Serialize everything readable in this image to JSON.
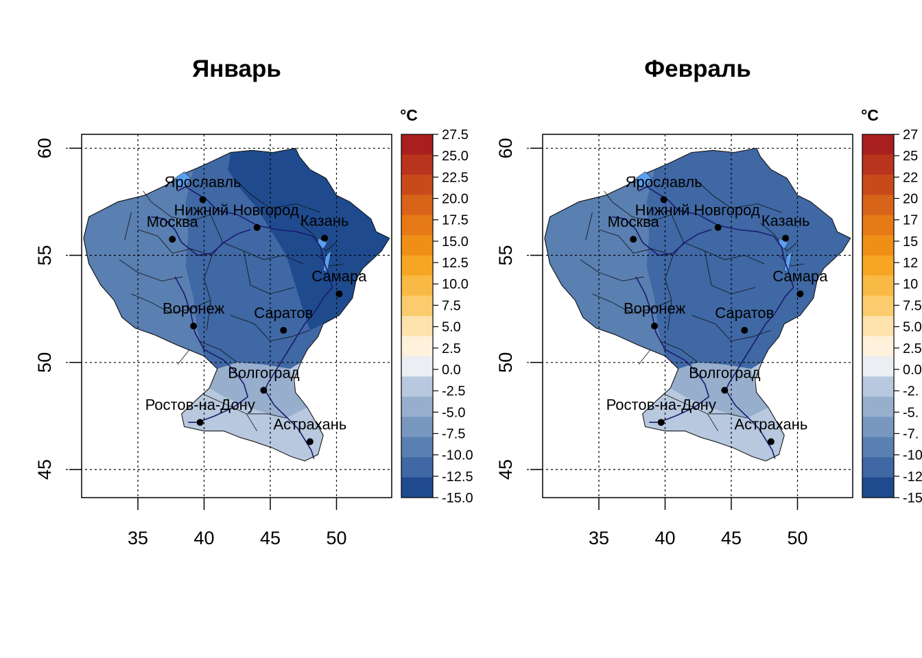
{
  "maps": [
    {
      "title": "Январь",
      "unit": "°C",
      "x_ticks": [
        "35",
        "40",
        "45",
        "50"
      ],
      "y_ticks": [
        "45",
        "50",
        "55",
        "60"
      ],
      "legend_ticks": [
        "27.5",
        "25.0",
        "22.5",
        "20.0",
        "17.5",
        "15.0",
        "12.5",
        "10.0",
        "7.5",
        "5.0",
        "2.5",
        "0.0",
        "-2.5",
        "-5.0",
        "-7.5",
        "-10.0",
        "-12.5",
        "-15.0"
      ],
      "cities": [
        {
          "name": "Ярославль",
          "lon": 39.9,
          "lat": 57.6
        },
        {
          "name": "Нижний Новгород",
          "lon": 44.0,
          "lat": 56.3
        },
        {
          "name": "Москва",
          "lon": 37.6,
          "lat": 55.75
        },
        {
          "name": "Казань",
          "lon": 49.1,
          "lat": 55.8
        },
        {
          "name": "Самара",
          "lon": 50.2,
          "lat": 53.2
        },
        {
          "name": "Воронеж",
          "lon": 39.2,
          "lat": 51.7
        },
        {
          "name": "Саратов",
          "lon": 46.0,
          "lat": 51.5
        },
        {
          "name": "Волгоград",
          "lon": 44.5,
          "lat": 48.7
        },
        {
          "name": "Ростов-на-Дону",
          "lon": 39.7,
          "lat": 47.2
        },
        {
          "name": "Астрахань",
          "lon": 48.0,
          "lat": 46.3
        }
      ]
    },
    {
      "title": "Февраль",
      "unit": "°C",
      "x_ticks": [
        "35",
        "40",
        "45",
        "50"
      ],
      "y_ticks": [
        "45",
        "50",
        "55",
        "60"
      ],
      "legend_ticks": [
        "27",
        "25",
        "22",
        "20",
        "17",
        "15",
        "12",
        "10",
        "7.5",
        "5.0",
        "2.5",
        "0.0",
        "-2.",
        "-5.",
        "-7.",
        "-10",
        "-12",
        "-15"
      ],
      "cities": [
        {
          "name": "Ярославль",
          "lon": 39.9,
          "lat": 57.6
        },
        {
          "name": "Нижний Новгород",
          "lon": 44.0,
          "lat": 56.3
        },
        {
          "name": "Москва",
          "lon": 37.6,
          "lat": 55.75
        },
        {
          "name": "Казань",
          "lon": 49.1,
          "lat": 55.8
        },
        {
          "name": "Самара",
          "lon": 50.2,
          "lat": 53.2
        },
        {
          "name": "Воронеж",
          "lon": 39.2,
          "lat": 51.7
        },
        {
          "name": "Саратов",
          "lon": 46.0,
          "lat": 51.5
        },
        {
          "name": "Волгоград",
          "lon": 44.5,
          "lat": 48.7
        },
        {
          "name": "Ростов-на-Дону",
          "lon": 39.7,
          "lat": 47.2
        },
        {
          "name": "Астрахань",
          "lon": 48.0,
          "lat": 46.3
        }
      ]
    }
  ],
  "palette": [
    "#a91e1e",
    "#b8341c",
    "#c84a1b",
    "#d86419",
    "#e57a17",
    "#f08f16",
    "#f7a624",
    "#f9ba45",
    "#fbcc6e",
    "#fde2ab",
    "#fff2dc",
    "#ebeef2",
    "#b8c8de",
    "#97aecd",
    "#7897bf",
    "#5a7fb1",
    "#3f68a4",
    "#1f4b8e"
  ],
  "region_colors": {
    "jan": {
      "north_east": "#1f4b8e",
      "center_east": "#3f68a4",
      "west": "#5a7fb1",
      "south": "#b8c8de",
      "south_mid": "#97aecd"
    },
    "feb": {
      "north_east": "#3f68a4",
      "center_east": "#3f68a4",
      "west": "#5a7fb1",
      "south": "#b8c8de",
      "south_mid": "#97aecd"
    }
  }
}
